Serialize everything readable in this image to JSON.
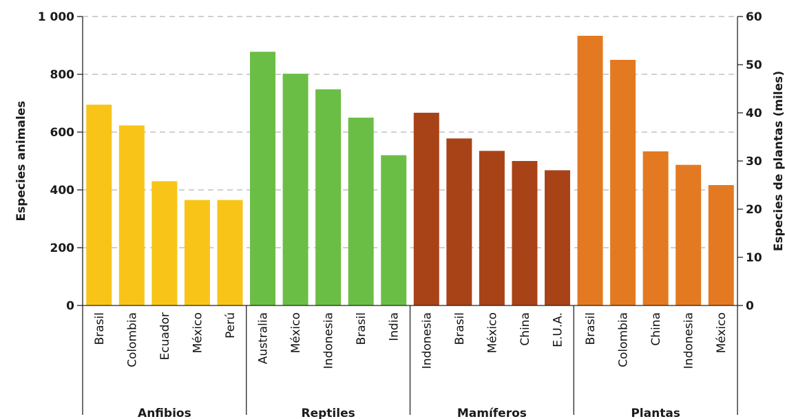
{
  "chart_data": {
    "type": "bar",
    "ylabel_left": "Especies animales",
    "ylabel_right": "Especies de plantas (miles)",
    "ylim_left": [
      0,
      1000
    ],
    "ylim_right": [
      0,
      60
    ],
    "yticks_left": [
      "0",
      "200",
      "400",
      "600",
      "800",
      "1 000"
    ],
    "yticks_right": [
      "0",
      "10",
      "20",
      "30",
      "40",
      "50",
      "60"
    ],
    "grid": "horizontal dashed",
    "groups": [
      {
        "name": "Anfibios",
        "axis": "left",
        "color": "#F9C418",
        "categories": [
          "Brasil",
          "Colombia",
          "Ecuador",
          "México",
          "Perú"
        ],
        "values": [
          695,
          623,
          430,
          365,
          365
        ]
      },
      {
        "name": "Reptiles",
        "axis": "left",
        "color": "#6BBE45",
        "categories": [
          "Australia",
          "México",
          "Indonesia",
          "Brasil",
          "India"
        ],
        "values": [
          878,
          802,
          748,
          650,
          520
        ]
      },
      {
        "name": "Mamíferos",
        "axis": "left",
        "color": "#A84318",
        "categories": [
          "Indonesia",
          "Brasil",
          "México",
          "China",
          "E.U.A."
        ],
        "values": [
          667,
          578,
          535,
          500,
          468
        ]
      },
      {
        "name": "Plantas",
        "axis": "right",
        "color": "#E37A22",
        "categories": [
          "Brasil",
          "Colombia",
          "China",
          "Indonesia",
          "México"
        ],
        "values": [
          56,
          51,
          32,
          29.2,
          25
        ]
      }
    ]
  }
}
